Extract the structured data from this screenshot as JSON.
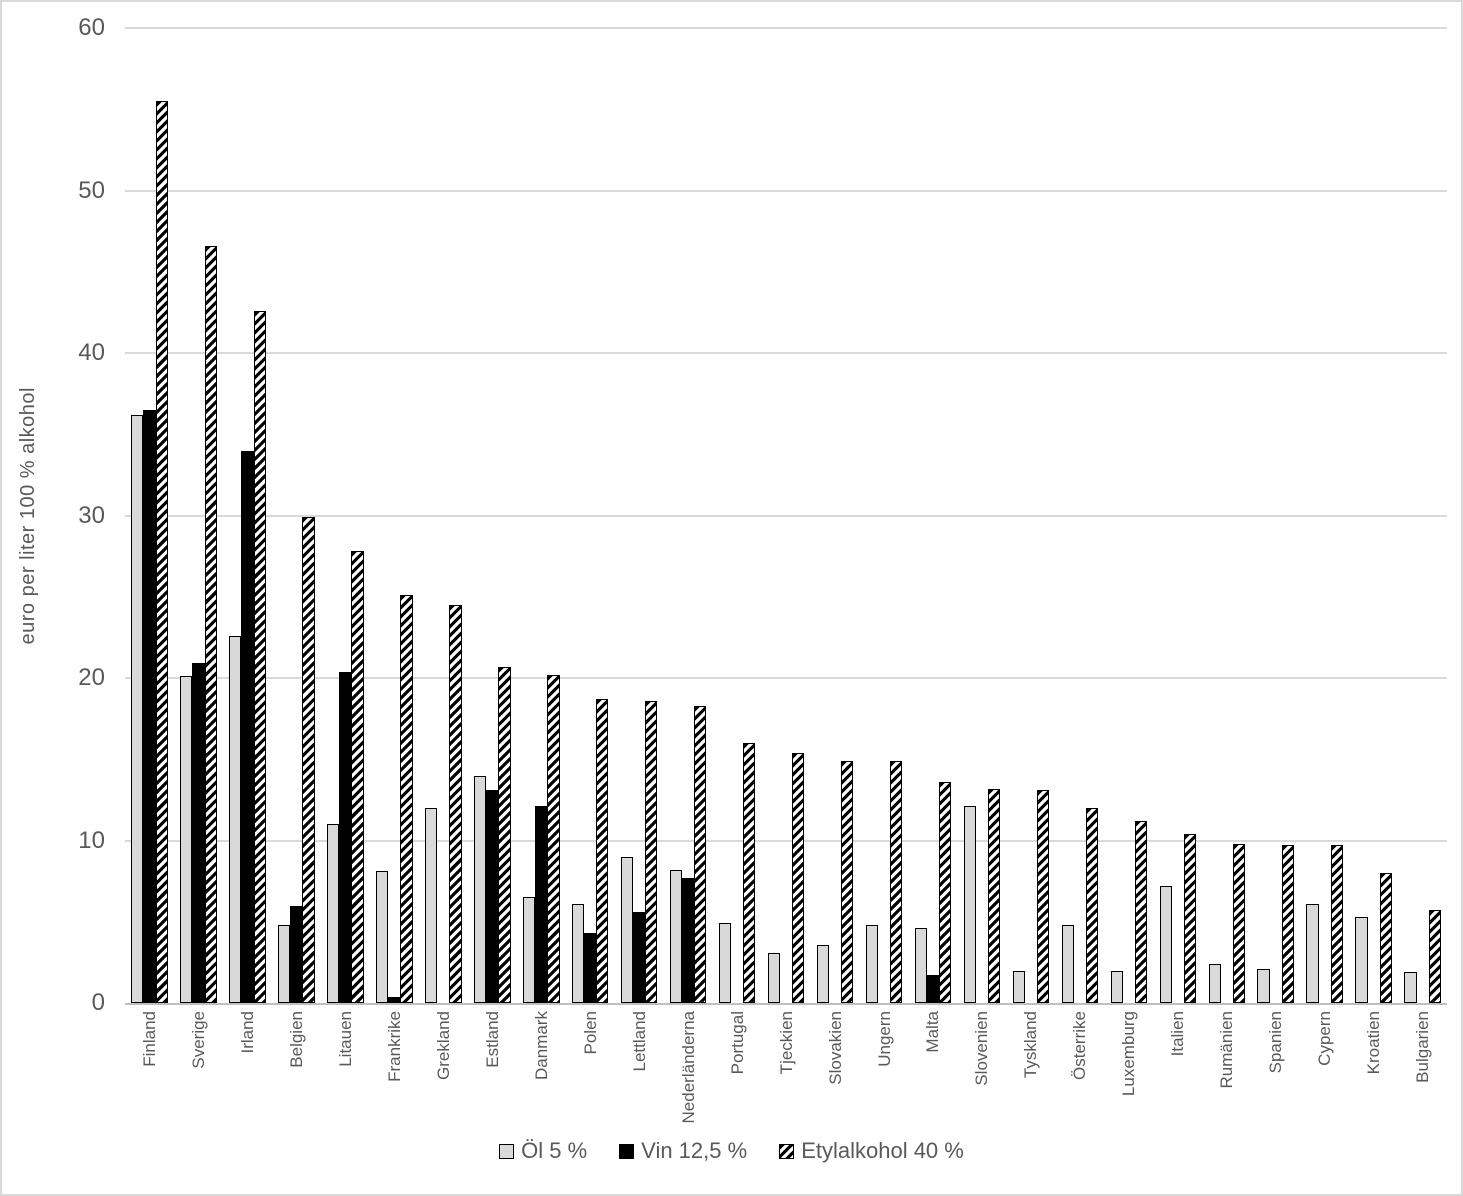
{
  "colors": {
    "text": "#595959",
    "gridline": "#d9d9d9",
    "axis_line": "#bfbfbf",
    "beer_bar_fill": "#d9d9d9",
    "wine_bar_fill": "#000000",
    "spirit_bar_hatch": "#000000",
    "background": "#ffffff"
  },
  "chart_data": {
    "type": "bar",
    "title": "",
    "xlabel": "",
    "ylabel": "euro per liter 100 % alkohol",
    "ylim": [
      0,
      60
    ],
    "yticks": [
      0,
      10,
      20,
      30,
      40,
      50,
      60
    ],
    "grid": true,
    "legend_position": "bottom",
    "categories": [
      "Finland",
      "Sverige",
      "Irland",
      "Belgien",
      "Litauen",
      "Frankrike",
      "Grekland",
      "Estland",
      "Danmark",
      "Polen",
      "Lettland",
      "Nederländerna",
      "Portugal",
      "Tjeckien",
      "Slovakien",
      "Ungern",
      "Malta",
      "Slovenien",
      "Tyskland",
      "Österrike",
      "Luxemburg",
      "Italien",
      "Rumänien",
      "Spanien",
      "Cypern",
      "Kroatien",
      "Bulgarien"
    ],
    "series": [
      {
        "name": "Öl 5 %",
        "style": "beer",
        "values": [
          36.2,
          20.1,
          22.6,
          4.8,
          11.0,
          8.1,
          12.0,
          14.0,
          6.5,
          6.1,
          9.0,
          8.2,
          4.9,
          3.1,
          3.6,
          4.8,
          4.6,
          12.1,
          2.0,
          4.8,
          2.0,
          7.2,
          2.4,
          2.1,
          6.1,
          5.3,
          1.9
        ]
      },
      {
        "name": "Vin 12,5 %",
        "style": "wine",
        "values": [
          36.5,
          20.9,
          34.0,
          6.0,
          20.4,
          0.4,
          0,
          13.1,
          12.1,
          4.3,
          5.6,
          7.7,
          0,
          0,
          0,
          0,
          1.7,
          0,
          0,
          0,
          0,
          0,
          0,
          0,
          0,
          0,
          0
        ]
      },
      {
        "name": "Etylalkohol 40 %",
        "style": "spirit",
        "values": [
          55.5,
          46.6,
          42.6,
          29.9,
          27.8,
          25.1,
          24.5,
          20.7,
          20.2,
          18.7,
          18.6,
          18.3,
          16.0,
          15.4,
          14.9,
          14.9,
          13.6,
          13.2,
          13.1,
          12.0,
          11.2,
          10.4,
          9.8,
          9.7,
          9.7,
          8.0,
          5.7
        ]
      }
    ]
  }
}
